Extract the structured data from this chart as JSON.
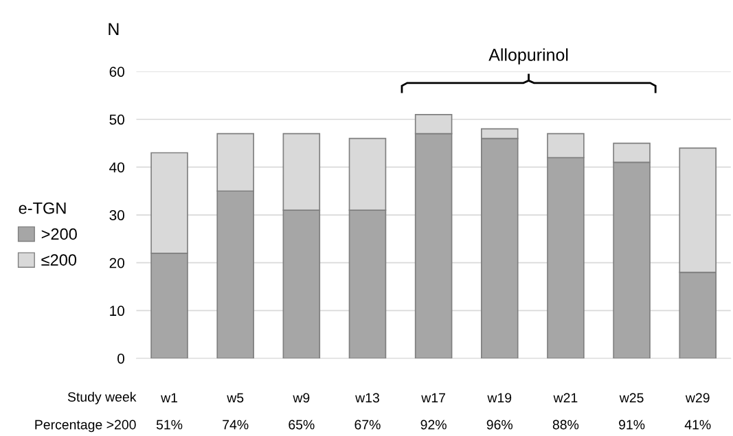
{
  "chart_data": {
    "type": "bar",
    "stacked": true,
    "ylabel": "N",
    "legend_title": "e-TGN",
    "legend": "left",
    "grid": "y",
    "categories": [
      "w1",
      "w5",
      "w9",
      "w13",
      "w17",
      "w19",
      "w21",
      "w25",
      "w29"
    ],
    "series": [
      {
        "name": ">200",
        "color": "#a6a6a6",
        "values": [
          22,
          35,
          31,
          31,
          47,
          46,
          42,
          41,
          18
        ]
      },
      {
        "name": "≤200",
        "color": "#d9d9d9",
        "values": [
          21,
          12,
          16,
          15,
          4,
          2,
          5,
          4,
          26
        ]
      }
    ],
    "ylim": [
      0,
      60
    ],
    "yticks": [
      0,
      10,
      20,
      30,
      40,
      50,
      60
    ],
    "annotations": [
      "Allopurinol",
      "Study week",
      "Percentage >200",
      "51%",
      "74%",
      "65%",
      "67%",
      "92%",
      "96%",
      "88%",
      "91%",
      "41%"
    ]
  }
}
